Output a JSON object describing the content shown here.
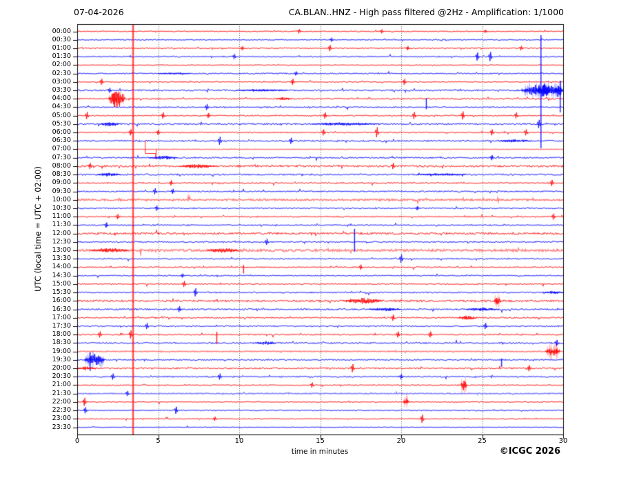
{
  "chart_data": {
    "type": "line",
    "subtype": "helicorder_seismogram",
    "date_label": "07-04-2026",
    "title": "CA.BLAN..HNZ - High pass filtered @2Hz - Amplification: 1/1000",
    "xlabel": "time in minutes",
    "ylabel": "UTC (local time = UTC + 02:00)",
    "copyright": "©ICGC 2026",
    "xlim": [
      0,
      30
    ],
    "x_ticks": [
      0,
      5,
      10,
      15,
      20,
      25,
      30
    ],
    "minutes_per_row": 30,
    "grid": "vertical-dotted",
    "legend_position": "none",
    "colors": {
      "hour_trace": "#ff0000",
      "half_hour_trace": "#0000ff",
      "frame": "#000000",
      "grid": "#444444",
      "marker_line": "#ff0000",
      "background": "#ffffff"
    },
    "marker_line_minute": 3.45,
    "rows": [
      {
        "t": "00:00",
        "c": "r",
        "n": 0.65
      },
      {
        "t": "00:30",
        "c": "b",
        "n": 0.7
      },
      {
        "t": "01:00",
        "c": "r",
        "n": 0.7
      },
      {
        "t": "01:30",
        "c": "b",
        "n": 0.8
      },
      {
        "t": "02:00",
        "c": "r",
        "n": 0.55
      },
      {
        "t": "02:30",
        "c": "b",
        "n": 0.75
      },
      {
        "t": "03:00",
        "c": "r",
        "n": 0.7
      },
      {
        "t": "03:30",
        "c": "b",
        "n": 1.0
      },
      {
        "t": "04:00",
        "c": "r",
        "n": 1.0
      },
      {
        "t": "04:30",
        "c": "b",
        "n": 0.8
      },
      {
        "t": "05:00",
        "c": "r",
        "n": 0.75
      },
      {
        "t": "05:30",
        "c": "b",
        "n": 1.1
      },
      {
        "t": "06:00",
        "c": "r",
        "n": 0.8
      },
      {
        "t": "06:30",
        "c": "b",
        "n": 1.0
      },
      {
        "t": "07:00",
        "c": "r",
        "n": 0.25,
        "p": 1
      },
      {
        "t": "07:30",
        "c": "b",
        "n": 0.9
      },
      {
        "t": "08:00",
        "c": "r",
        "n": 1.3
      },
      {
        "t": "08:30",
        "c": "b",
        "n": 1.1
      },
      {
        "t": "09:00",
        "c": "r",
        "n": 0.9
      },
      {
        "t": "09:30",
        "c": "b",
        "n": 0.85
      },
      {
        "t": "10:00",
        "c": "r",
        "n": 1.2,
        "p": 1
      },
      {
        "t": "10:30",
        "c": "b",
        "n": 0.8
      },
      {
        "t": "11:00",
        "c": "r",
        "n": 0.85
      },
      {
        "t": "11:30",
        "c": "b",
        "n": 0.8
      },
      {
        "t": "12:00",
        "c": "r",
        "n": 1.4
      },
      {
        "t": "12:30",
        "c": "b",
        "n": 0.9
      },
      {
        "t": "13:00",
        "c": "r",
        "n": 1.5,
        "p": 1
      },
      {
        "t": "13:30",
        "c": "b",
        "n": 0.85
      },
      {
        "t": "14:00",
        "c": "r",
        "n": 0.8
      },
      {
        "t": "14:30",
        "c": "b",
        "n": 0.7
      },
      {
        "t": "15:00",
        "c": "r",
        "n": 0.8
      },
      {
        "t": "15:30",
        "c": "b",
        "n": 0.85
      },
      {
        "t": "16:00",
        "c": "r",
        "n": 1.3
      },
      {
        "t": "16:30",
        "c": "b",
        "n": 1.1
      },
      {
        "t": "17:00",
        "c": "r",
        "n": 0.9
      },
      {
        "t": "17:30",
        "c": "b",
        "n": 0.85
      },
      {
        "t": "18:00",
        "c": "r",
        "n": 0.9
      },
      {
        "t": "18:30",
        "c": "b",
        "n": 1.0
      },
      {
        "t": "19:00",
        "c": "r",
        "n": 0.6,
        "p": 1
      },
      {
        "t": "19:30",
        "c": "b",
        "n": 0.9
      },
      {
        "t": "20:00",
        "c": "r",
        "n": 1.0
      },
      {
        "t": "20:30",
        "c": "b",
        "n": 0.9
      },
      {
        "t": "21:00",
        "c": "r",
        "n": 0.7
      },
      {
        "t": "21:30",
        "c": "b",
        "n": 0.6,
        "p": 1
      },
      {
        "t": "22:00",
        "c": "r",
        "n": 0.65
      },
      {
        "t": "22:30",
        "c": "b",
        "n": 0.7
      },
      {
        "t": "23:00",
        "c": "r",
        "n": 0.6
      },
      {
        "t": "23:30",
        "c": "b",
        "n": 0.45
      }
    ],
    "events": [
      {
        "row": "00:00",
        "type": "s",
        "m": 13.7,
        "a": 2
      },
      {
        "row": "00:00",
        "type": "s",
        "m": 18.8,
        "a": 2
      },
      {
        "row": "00:00",
        "type": "s",
        "m": 25.2,
        "a": 1.5
      },
      {
        "row": "00:30",
        "type": "s",
        "m": 15.7,
        "a": 2
      },
      {
        "row": "01:00",
        "type": "s",
        "m": 10.2,
        "a": 2
      },
      {
        "row": "01:00",
        "type": "s",
        "m": 15.6,
        "a": 3
      },
      {
        "row": "01:00",
        "type": "s",
        "m": 20.4,
        "a": 2
      },
      {
        "row": "01:00",
        "type": "s",
        "m": 27.4,
        "a": 2.2
      },
      {
        "row": "01:30",
        "type": "s",
        "m": 9.7,
        "a": 2.5
      },
      {
        "row": "01:30",
        "type": "s",
        "m": 24.7,
        "a": 4
      },
      {
        "row": "01:30",
        "type": "s",
        "m": 25.5,
        "a": 4.5
      },
      {
        "row": "02:30",
        "type": "b",
        "m0": 5.0,
        "m1": 7.0,
        "a": 1.5
      },
      {
        "row": "02:30",
        "type": "s",
        "m": 13.5,
        "a": 2
      },
      {
        "row": "03:00",
        "type": "s",
        "m": 1.5,
        "a": 3
      },
      {
        "row": "03:00",
        "type": "s",
        "m": 13.3,
        "a": 3
      },
      {
        "row": "03:00",
        "type": "s",
        "m": 20.2,
        "a": 3
      },
      {
        "row": "03:30",
        "type": "s",
        "m": 2.0,
        "a": 2.5
      },
      {
        "row": "03:30",
        "type": "b",
        "m0": 9.8,
        "m1": 13.0,
        "a": 2
      },
      {
        "row": "03:30",
        "type": "b",
        "m0": 27.4,
        "m1": 30.0,
        "a": 9
      },
      {
        "row": "03:30",
        "type": "b",
        "m0": 28.4,
        "m1": 29.2,
        "a": 13
      },
      {
        "row": "03:30",
        "type": "b",
        "m0": 29.5,
        "m1": 30.0,
        "a": 12
      },
      {
        "row": "03:30",
        "type": "v",
        "m": 28.63,
        "up": 80,
        "dn": 84
      },
      {
        "row": "03:30",
        "type": "v",
        "m": 29.82,
        "up": 14,
        "dn": 32
      },
      {
        "row": "04:00",
        "type": "b",
        "m0": 1.95,
        "m1": 2.95,
        "a": 15
      },
      {
        "row": "04:00",
        "type": "b",
        "m0": 12.3,
        "m1": 13.2,
        "a": 2.5
      },
      {
        "row": "04:30",
        "type": "s",
        "m": 8.0,
        "a": 3
      },
      {
        "row": "04:30",
        "type": "v",
        "m": 21.55,
        "up": 13,
        "dn": 3
      },
      {
        "row": "05:00",
        "type": "s",
        "m": 0.6,
        "a": 3.5
      },
      {
        "row": "05:00",
        "type": "s",
        "m": 5.3,
        "a": 3
      },
      {
        "row": "05:00",
        "type": "s",
        "m": 8.1,
        "a": 2.5
      },
      {
        "row": "05:00",
        "type": "s",
        "m": 15.3,
        "a": 3
      },
      {
        "row": "05:00",
        "type": "s",
        "m": 20.8,
        "a": 3.5
      },
      {
        "row": "05:00",
        "type": "s",
        "m": 23.8,
        "a": 4
      },
      {
        "row": "05:00",
        "type": "s",
        "m": 27.1,
        "a": 3
      },
      {
        "row": "05:30",
        "type": "b",
        "m0": 1.4,
        "m1": 2.6,
        "a": 4
      },
      {
        "row": "05:30",
        "type": "b",
        "m0": 14.5,
        "m1": 18.5,
        "a": 2.5
      },
      {
        "row": "05:30",
        "type": "s",
        "m": 28.5,
        "a": 4
      },
      {
        "row": "06:00",
        "type": "s",
        "m": 3.3,
        "a": 3
      },
      {
        "row": "06:00",
        "type": "s",
        "m": 5.0,
        "a": 2.5
      },
      {
        "row": "06:00",
        "type": "s",
        "m": 15.2,
        "a": 3
      },
      {
        "row": "06:00",
        "type": "s",
        "m": 18.5,
        "a": 5
      },
      {
        "row": "06:00",
        "type": "s",
        "m": 25.6,
        "a": 3
      },
      {
        "row": "06:00",
        "type": "s",
        "m": 27.7,
        "a": 3
      },
      {
        "row": "06:30",
        "type": "s",
        "m": 8.8,
        "a": 4
      },
      {
        "row": "06:30",
        "type": "s",
        "m": 13.2,
        "a": 3
      },
      {
        "row": "06:30",
        "type": "b",
        "m0": 26.0,
        "m1": 28.0,
        "a": 2.5
      },
      {
        "row": "07:00",
        "type": "st",
        "m0": 4.2,
        "m1": 4.85,
        "a": 12
      },
      {
        "row": "07:30",
        "type": "b",
        "m0": 4.4,
        "m1": 6.2,
        "a": 3
      },
      {
        "row": "07:30",
        "type": "s",
        "m": 25.6,
        "a": 2.5
      },
      {
        "row": "08:00",
        "type": "s",
        "m": 0.8,
        "a": 3
      },
      {
        "row": "08:00",
        "type": "b",
        "m0": 6.3,
        "m1": 8.6,
        "a": 3.5
      },
      {
        "row": "08:00",
        "type": "s",
        "m": 19.5,
        "a": 3
      },
      {
        "row": "08:30",
        "type": "b",
        "m0": 1.2,
        "m1": 2.7,
        "a": 3
      },
      {
        "row": "08:30",
        "type": "b",
        "m0": 21.0,
        "m1": 24.0,
        "a": 2
      },
      {
        "row": "09:00",
        "type": "s",
        "m": 5.8,
        "a": 2.5
      },
      {
        "row": "09:00",
        "type": "s",
        "m": 29.3,
        "a": 3
      },
      {
        "row": "09:30",
        "type": "s",
        "m": 4.8,
        "a": 3
      },
      {
        "row": "09:30",
        "type": "s",
        "m": 5.9,
        "a": 2.5
      },
      {
        "row": "10:30",
        "type": "s",
        "m": 4.9,
        "a": 2.5
      },
      {
        "row": "10:30",
        "type": "s",
        "m": 21.0,
        "a": 2
      },
      {
        "row": "11:00",
        "type": "s",
        "m": 2.5,
        "a": 2.5
      },
      {
        "row": "11:00",
        "type": "s",
        "m": 29.4,
        "a": 3
      },
      {
        "row": "11:30",
        "type": "s",
        "m": 1.8,
        "a": 2.5
      },
      {
        "row": "12:30",
        "type": "s",
        "m": 11.7,
        "a": 3
      },
      {
        "row": "12:30",
        "type": "v",
        "m": 17.12,
        "up": 19,
        "dn": 14
      },
      {
        "row": "13:00",
        "type": "b",
        "m0": 0.8,
        "m1": 3.2,
        "a": 3.5
      },
      {
        "row": "13:00",
        "type": "b",
        "m0": 8.0,
        "m1": 10.0,
        "a": 3.5
      },
      {
        "row": "13:30",
        "type": "s",
        "m": 20.0,
        "a": 4
      },
      {
        "row": "14:00",
        "type": "v",
        "m": 10.27,
        "up": 3,
        "dn": 9
      },
      {
        "row": "14:00",
        "type": "s",
        "m": 17.5,
        "a": 2.5
      },
      {
        "row": "14:30",
        "type": "s",
        "m": 6.5,
        "a": 2
      },
      {
        "row": "15:00",
        "type": "s",
        "m": 6.6,
        "a": 3
      },
      {
        "row": "15:30",
        "type": "s",
        "m": 7.3,
        "a": 4
      },
      {
        "row": "15:30",
        "type": "b",
        "m0": 28.8,
        "m1": 30.0,
        "a": 2.5
      },
      {
        "row": "16:00",
        "type": "b",
        "m0": 16.4,
        "m1": 18.9,
        "a": 4.5
      },
      {
        "row": "16:00",
        "type": "b",
        "m0": 25.75,
        "m1": 26.15,
        "a": 7
      },
      {
        "row": "16:30",
        "type": "s",
        "m": 6.3,
        "a": 3
      },
      {
        "row": "16:30",
        "type": "b",
        "m0": 18.0,
        "m1": 20.0,
        "a": 2.5
      },
      {
        "row": "16:30",
        "type": "b",
        "m0": 24.0,
        "m1": 26.0,
        "a": 2.5
      },
      {
        "row": "17:00",
        "type": "s",
        "m": 19.5,
        "a": 3
      },
      {
        "row": "17:00",
        "type": "b",
        "m0": 23.5,
        "m1": 24.7,
        "a": 3.5
      },
      {
        "row": "17:30",
        "type": "s",
        "m": 4.3,
        "a": 3
      },
      {
        "row": "17:30",
        "type": "s",
        "m": 25.2,
        "a": 3
      },
      {
        "row": "18:00",
        "type": "s",
        "m": 1.4,
        "a": 3
      },
      {
        "row": "18:00",
        "type": "s",
        "m": 3.3,
        "a": 4
      },
      {
        "row": "18:00",
        "type": "v",
        "m": 8.62,
        "up": 4,
        "dn": 13
      },
      {
        "row": "18:00",
        "type": "s",
        "m": 19.8,
        "a": 3
      },
      {
        "row": "18:00",
        "type": "s",
        "m": 21.8,
        "a": 3
      },
      {
        "row": "18:30",
        "type": "b",
        "m0": 11.0,
        "m1": 12.3,
        "a": 3
      },
      {
        "row": "18:30",
        "type": "s",
        "m": 29.6,
        "a": 3
      },
      {
        "row": "19:00",
        "type": "b",
        "m0": 28.9,
        "m1": 29.8,
        "a": 7
      },
      {
        "row": "19:30",
        "type": "b",
        "m0": 0.45,
        "m1": 1.7,
        "a": 9
      },
      {
        "row": "19:30",
        "type": "v",
        "m": 0.8,
        "up": 11,
        "dn": 16
      },
      {
        "row": "19:30",
        "type": "v",
        "m": 26.2,
        "up": 2,
        "dn": 10
      },
      {
        "row": "20:00",
        "type": "b",
        "m0": 0.0,
        "m1": 1.2,
        "a": 3
      },
      {
        "row": "20:00",
        "type": "s",
        "m": 17.0,
        "a": 4
      },
      {
        "row": "20:00",
        "type": "s",
        "m": 27.9,
        "a": 3
      },
      {
        "row": "20:30",
        "type": "s",
        "m": 2.2,
        "a": 3
      },
      {
        "row": "20:30",
        "type": "s",
        "m": 8.8,
        "a": 3
      },
      {
        "row": "20:30",
        "type": "s",
        "m": 20.0,
        "a": 2.5
      },
      {
        "row": "21:00",
        "type": "s",
        "m": 14.5,
        "a": 2.5
      },
      {
        "row": "21:00",
        "type": "b",
        "m0": 23.7,
        "m1": 24.05,
        "a": 8
      },
      {
        "row": "21:30",
        "type": "s",
        "m": 3.1,
        "a": 2.5
      },
      {
        "row": "22:00",
        "type": "s",
        "m": 0.45,
        "a": 4
      },
      {
        "row": "22:00",
        "type": "b",
        "m0": 20.15,
        "m1": 20.5,
        "a": 6
      },
      {
        "row": "22:30",
        "type": "s",
        "m": 0.5,
        "a": 3
      },
      {
        "row": "22:30",
        "type": "s",
        "m": 6.1,
        "a": 3.5
      },
      {
        "row": "23:00",
        "type": "s",
        "m": 8.5,
        "a": 2
      },
      {
        "row": "23:00",
        "type": "s",
        "m": 21.3,
        "a": 4
      }
    ]
  }
}
